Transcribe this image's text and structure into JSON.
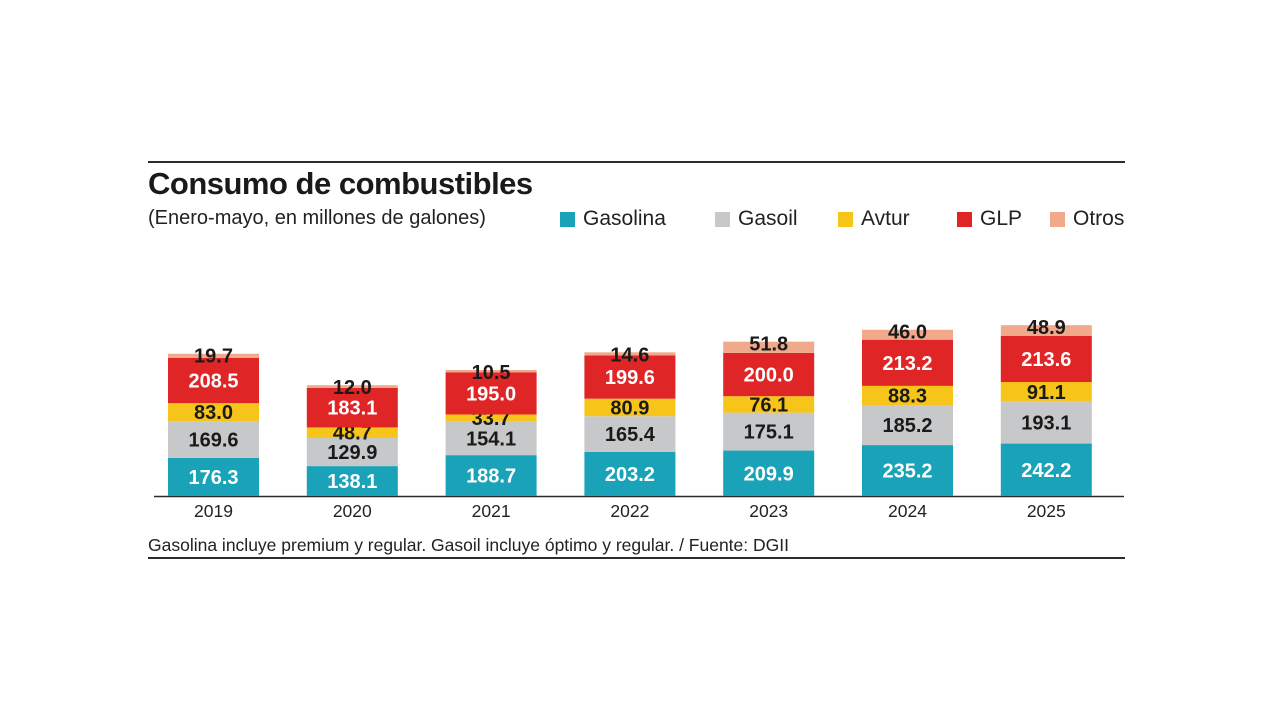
{
  "title": "Consumo de combustibles",
  "subtitle": "(Enero-mayo, en millones de galones)",
  "footnote": "Gasolina incluye premium y regular. Gasoil incluye óptimo y regular. / Fuente: DGII",
  "chart_data": {
    "type": "bar",
    "stacked": true,
    "categories": [
      "2019",
      "2020",
      "2021",
      "2022",
      "2023",
      "2024",
      "2025"
    ],
    "series": [
      {
        "name": "Gasolina",
        "color": "#1aa3b8",
        "values": [
          176.3,
          138.1,
          188.7,
          203.2,
          209.9,
          235.2,
          242.2
        ],
        "labels": [
          "176.3",
          "138.1",
          "188.7",
          "203.2",
          "209.9",
          "235.2",
          "242.2"
        ]
      },
      {
        "name": "Gasoil",
        "color": "#c7c8ca",
        "values": [
          169.6,
          129.9,
          154.1,
          165.4,
          175.1,
          185.2,
          193.1
        ],
        "labels": [
          "169.6",
          "129.9",
          "154.1",
          "165.4",
          "175.1",
          "185.2",
          "193.1"
        ]
      },
      {
        "name": "Avtur",
        "color": "#f7c41a",
        "values": [
          83.0,
          48.7,
          33.7,
          80.9,
          76.1,
          88.3,
          91.1
        ],
        "labels": [
          "83.0",
          "48.7",
          "33.7",
          "80.9",
          "76.1",
          "88.3",
          "91.1"
        ]
      },
      {
        "name": "GLP",
        "color": "#e02526",
        "values": [
          208.5,
          183.1,
          195.0,
          199.6,
          200.0,
          213.2,
          213.6
        ],
        "labels": [
          "208.5",
          "183.1",
          "195.0",
          "199.6",
          "200.0",
          "213.2",
          "213.6"
        ]
      },
      {
        "name": "Otros",
        "color": "#f0a98a",
        "values": [
          19.7,
          12.0,
          10.5,
          14.6,
          51.8,
          46.0,
          48.9
        ],
        "labels": [
          "19.7",
          "12.0",
          "10.5",
          "14.6",
          "51.8",
          "46.0",
          "48.9"
        ]
      }
    ],
    "legend_position": "top-right",
    "grid": false
  }
}
